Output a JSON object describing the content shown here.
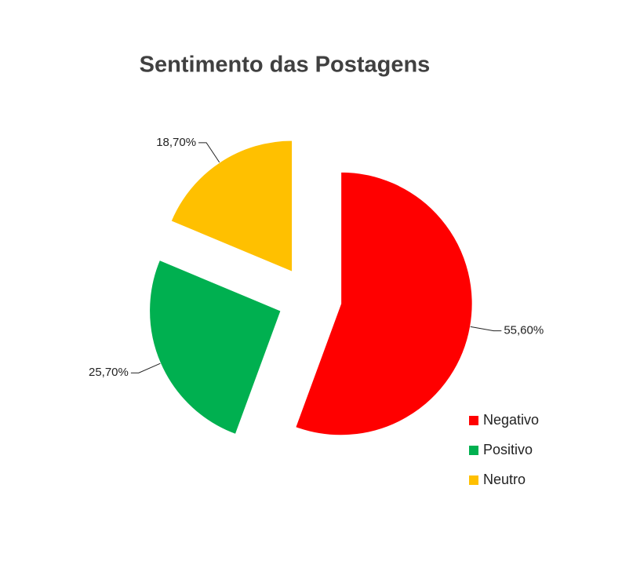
{
  "chart_data": {
    "type": "pie",
    "title": "Sentimento das Postagens",
    "categories": [
      "Negativo",
      "Positivo",
      "Neutro"
    ],
    "values": [
      55.6,
      25.7,
      18.7
    ],
    "value_labels": [
      "55,60%",
      "25,70%",
      "18,70%"
    ],
    "colors": [
      "#ff0000",
      "#00b050",
      "#ffc000"
    ],
    "legend": "bottom-right"
  }
}
